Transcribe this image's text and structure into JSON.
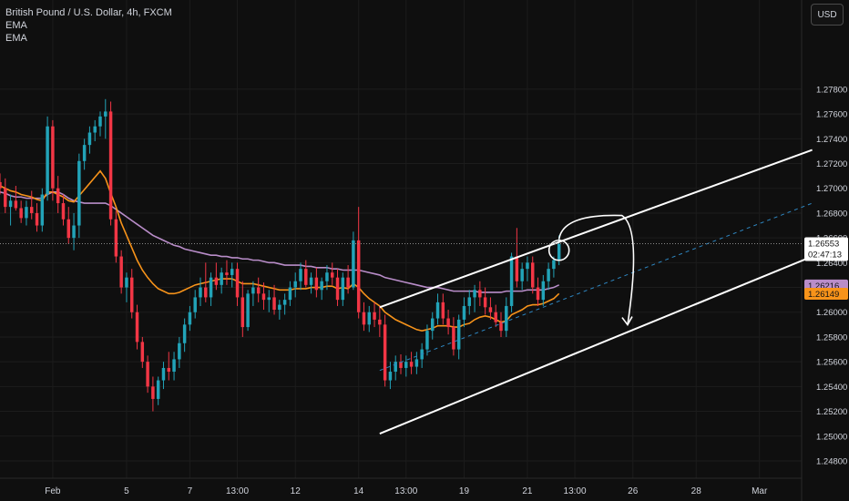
{
  "legend": {
    "symbol_line": "British Pound / U.S. Dollar, 4h, FXCM",
    "ema1": "EMA",
    "ema2": "EMA"
  },
  "currency_button": "USD",
  "chart_data": {
    "type": "candlestick",
    "ylim": [
      1.2466,
      1.2852
    ],
    "y_ticks": [
      "1.27800",
      "1.27600",
      "1.27400",
      "1.27200",
      "1.27000",
      "1.26800",
      "1.26600",
      "1.26400",
      "1.26200",
      "1.26000",
      "1.25800",
      "1.25600",
      "1.25400",
      "1.25200",
      "1.25000",
      "1.24800"
    ],
    "y_tick_values": [
      1.278,
      1.276,
      1.274,
      1.272,
      1.27,
      1.268,
      1.266,
      1.264,
      1.262,
      1.26,
      1.258,
      1.256,
      1.254,
      1.252,
      1.25,
      1.248
    ],
    "x_range": [
      0,
      152
    ],
    "x_ticks": [
      {
        "label": "Feb",
        "x": 10
      },
      {
        "label": "5",
        "x": 24
      },
      {
        "label": "7",
        "x": 36
      },
      {
        "label": "13:00",
        "x": 45
      },
      {
        "label": "12",
        "x": 56
      },
      {
        "label": "14",
        "x": 68
      },
      {
        "label": "13:00",
        "x": 77
      },
      {
        "label": "19",
        "x": 88
      },
      {
        "label": "21",
        "x": 100
      },
      {
        "label": "13:00",
        "x": 109
      },
      {
        "label": "26",
        "x": 120
      },
      {
        "label": "28",
        "x": 132
      },
      {
        "label": "Mar",
        "x": 144
      }
    ],
    "candles": [
      [
        1.2705,
        1.2712,
        1.2695,
        1.27
      ],
      [
        1.27,
        1.2708,
        1.268,
        1.2685
      ],
      [
        1.2685,
        1.2695,
        1.267,
        1.269
      ],
      [
        1.269,
        1.2702,
        1.2682,
        1.2684
      ],
      [
        1.2684,
        1.269,
        1.2672,
        1.2676
      ],
      [
        1.2676,
        1.269,
        1.267,
        1.2685
      ],
      [
        1.2685,
        1.2698,
        1.2675,
        1.268
      ],
      [
        1.268,
        1.2688,
        1.2665,
        1.267
      ],
      [
        1.267,
        1.27,
        1.2665,
        1.2695
      ],
      [
        1.2695,
        1.2758,
        1.269,
        1.275
      ],
      [
        1.275,
        1.2755,
        1.269,
        1.27
      ],
      [
        1.27,
        1.271,
        1.268,
        1.2688
      ],
      [
        1.2688,
        1.2695,
        1.267,
        1.2675
      ],
      [
        1.2675,
        1.2685,
        1.2655,
        1.266
      ],
      [
        1.266,
        1.268,
        1.265,
        1.267
      ],
      [
        1.267,
        1.2728,
        1.266,
        1.2722
      ],
      [
        1.2722,
        1.274,
        1.2715,
        1.2735
      ],
      [
        1.2735,
        1.275,
        1.2728,
        1.2745
      ],
      [
        1.2745,
        1.2755,
        1.2738,
        1.275
      ],
      [
        1.275,
        1.2762,
        1.2742,
        1.2758
      ],
      [
        1.2758,
        1.2772,
        1.274,
        1.2762
      ],
      [
        1.2762,
        1.277,
        1.267,
        1.2675
      ],
      [
        1.2675,
        1.2682,
        1.264,
        1.2645
      ],
      [
        1.2645,
        1.265,
        1.2615,
        1.262
      ],
      [
        1.262,
        1.2632,
        1.2608,
        1.2628
      ],
      [
        1.2628,
        1.2635,
        1.2595,
        1.26
      ],
      [
        1.26,
        1.2606,
        1.257,
        1.2576
      ],
      [
        1.2576,
        1.258,
        1.2555,
        1.256
      ],
      [
        1.256,
        1.2565,
        1.2535,
        1.254
      ],
      [
        1.254,
        1.2548,
        1.252,
        1.253
      ],
      [
        1.253,
        1.2548,
        1.2525,
        1.2545
      ],
      [
        1.2545,
        1.256,
        1.2538,
        1.2555
      ],
      [
        1.2555,
        1.2568,
        1.2545,
        1.2552
      ],
      [
        1.2552,
        1.2568,
        1.2545,
        1.2562
      ],
      [
        1.2562,
        1.258,
        1.2555,
        1.2575
      ],
      [
        1.2575,
        1.2595,
        1.2568,
        1.259
      ],
      [
        1.259,
        1.2605,
        1.2585,
        1.26
      ],
      [
        1.26,
        1.2618,
        1.2595,
        1.2612
      ],
      [
        1.2612,
        1.2628,
        1.2605,
        1.262
      ],
      [
        1.262,
        1.264,
        1.2608,
        1.2612
      ],
      [
        1.2612,
        1.2632,
        1.2605,
        1.2628
      ],
      [
        1.2628,
        1.264,
        1.2618,
        1.2622
      ],
      [
        1.2622,
        1.2636,
        1.2615,
        1.2632
      ],
      [
        1.2632,
        1.2642,
        1.2622,
        1.263
      ],
      [
        1.263,
        1.264,
        1.262,
        1.2635
      ],
      [
        1.2635,
        1.264,
        1.2605,
        1.2612
      ],
      [
        1.2612,
        1.2625,
        1.258,
        1.2588
      ],
      [
        1.2588,
        1.2618,
        1.2585,
        1.2615
      ],
      [
        1.2615,
        1.2625,
        1.2605,
        1.262
      ],
      [
        1.262,
        1.2628,
        1.2608,
        1.2615
      ],
      [
        1.2615,
        1.2624,
        1.2602,
        1.261
      ],
      [
        1.261,
        1.2618,
        1.26,
        1.2612
      ],
      [
        1.2612,
        1.2622,
        1.2598,
        1.2602
      ],
      [
        1.2602,
        1.261,
        1.2594,
        1.2606
      ],
      [
        1.2606,
        1.2615,
        1.2598,
        1.261
      ],
      [
        1.261,
        1.2625,
        1.2605,
        1.262
      ],
      [
        1.262,
        1.2632,
        1.2612,
        1.2625
      ],
      [
        1.2625,
        1.264,
        1.2618,
        1.2635
      ],
      [
        1.2635,
        1.2642,
        1.262,
        1.2622
      ],
      [
        1.2622,
        1.2632,
        1.2615,
        1.2628
      ],
      [
        1.2628,
        1.2636,
        1.2612,
        1.2618
      ],
      [
        1.2618,
        1.2628,
        1.261,
        1.2625
      ],
      [
        1.2625,
        1.2638,
        1.2618,
        1.2632
      ],
      [
        1.2632,
        1.264,
        1.2622,
        1.2628
      ],
      [
        1.2628,
        1.2635,
        1.2605,
        1.261
      ],
      [
        1.261,
        1.2632,
        1.2605,
        1.2628
      ],
      [
        1.2628,
        1.2638,
        1.2615,
        1.262
      ],
      [
        1.262,
        1.2665,
        1.2618,
        1.2658
      ],
      [
        1.2658,
        1.2685,
        1.2595,
        1.26
      ],
      [
        1.26,
        1.2608,
        1.2585,
        1.259
      ],
      [
        1.259,
        1.2605,
        1.2584,
        1.26
      ],
      [
        1.26,
        1.2608,
        1.2588,
        1.2594
      ],
      [
        1.2594,
        1.2605,
        1.258,
        1.259
      ],
      [
        1.259,
        1.2598,
        1.254,
        1.2545
      ],
      [
        1.2545,
        1.256,
        1.2538,
        1.2552
      ],
      [
        1.2552,
        1.2565,
        1.2545,
        1.256
      ],
      [
        1.256,
        1.2566,
        1.255,
        1.2555
      ],
      [
        1.2555,
        1.2565,
        1.2548,
        1.256
      ],
      [
        1.256,
        1.2568,
        1.255,
        1.2556
      ],
      [
        1.2556,
        1.2568,
        1.255,
        1.2562
      ],
      [
        1.2562,
        1.2575,
        1.2555,
        1.257
      ],
      [
        1.257,
        1.259,
        1.2565,
        1.2585
      ],
      [
        1.2585,
        1.26,
        1.2578,
        1.2595
      ],
      [
        1.2595,
        1.2615,
        1.259,
        1.2608
      ],
      [
        1.2608,
        1.2615,
        1.259,
        1.2595
      ],
      [
        1.2595,
        1.2602,
        1.2582,
        1.2588
      ],
      [
        1.2588,
        1.2596,
        1.2565,
        1.257
      ],
      [
        1.257,
        1.2598,
        1.2562,
        1.2594
      ],
      [
        1.2594,
        1.2612,
        1.2588,
        1.2605
      ],
      [
        1.2605,
        1.2618,
        1.2598,
        1.2612
      ],
      [
        1.2612,
        1.2622,
        1.26,
        1.2618
      ],
      [
        1.2618,
        1.2625,
        1.2605,
        1.2612
      ],
      [
        1.2612,
        1.262,
        1.2598,
        1.2604
      ],
      [
        1.2604,
        1.2612,
        1.2594,
        1.26
      ],
      [
        1.26,
        1.2606,
        1.2588,
        1.2592
      ],
      [
        1.2592,
        1.26,
        1.258,
        1.2585
      ],
      [
        1.2585,
        1.2612,
        1.258,
        1.2605
      ],
      [
        1.2605,
        1.2648,
        1.26,
        1.2645
      ],
      [
        1.2645,
        1.2668,
        1.262,
        1.2625
      ],
      [
        1.2625,
        1.264,
        1.2618,
        1.2635
      ],
      [
        1.2635,
        1.2645,
        1.2625,
        1.264
      ],
      [
        1.264,
        1.2645,
        1.2615,
        1.262
      ],
      [
        1.262,
        1.2628,
        1.2605,
        1.261
      ],
      [
        1.261,
        1.263,
        1.2605,
        1.2625
      ],
      [
        1.2625,
        1.264,
        1.2618,
        1.2635
      ],
      [
        1.2635,
        1.2645,
        1.2628,
        1.2642
      ],
      [
        1.2642,
        1.2662,
        1.2638,
        1.2655
      ]
    ],
    "series": [
      {
        "name": "EMA",
        "color": "#b98dc9",
        "values": [
          1.2697,
          1.2696,
          1.2694,
          1.2693,
          1.2693,
          1.2692,
          1.2692,
          1.2692,
          1.2692,
          1.2695,
          1.2697,
          1.2697,
          1.2695,
          1.2692,
          1.269,
          1.2689,
          1.2688,
          1.2688,
          1.2688,
          1.2688,
          1.2688,
          1.2686,
          1.2683,
          1.268,
          1.2677,
          1.2674,
          1.2671,
          1.2668,
          1.2665,
          1.2662,
          1.266,
          1.2658,
          1.2656,
          1.2654,
          1.2653,
          1.2651,
          1.265,
          1.2649,
          1.2648,
          1.2647,
          1.2646,
          1.2646,
          1.2645,
          1.2645,
          1.2644,
          1.2644,
          1.2643,
          1.2643,
          1.2642,
          1.2642,
          1.2641,
          1.264,
          1.264,
          1.2639,
          1.2638,
          1.2638,
          1.2638,
          1.2638,
          1.2637,
          1.2637,
          1.2636,
          1.2636,
          1.2636,
          1.2635,
          1.2635,
          1.2634,
          1.2634,
          1.2634,
          1.2634,
          1.2633,
          1.2632,
          1.2631,
          1.263,
          1.2628,
          1.2627,
          1.2626,
          1.2625,
          1.2624,
          1.2623,
          1.2622,
          1.2621,
          1.262,
          1.262,
          1.262,
          1.2619,
          1.2618,
          1.2617,
          1.2617,
          1.2617,
          1.2617,
          1.2617,
          1.2616,
          1.2616,
          1.2616,
          1.2616,
          1.2616,
          1.2617,
          1.2617,
          1.2617,
          1.2617,
          1.2618,
          1.2618,
          1.2618,
          1.2618,
          1.2619,
          1.262,
          1.2622
        ]
      },
      {
        "name": "EMA",
        "color": "#f7931a",
        "values": [
          1.2702,
          1.27,
          1.2698,
          1.2697,
          1.2695,
          1.2694,
          1.2693,
          1.2691,
          1.269,
          1.2697,
          1.2697,
          1.2695,
          1.2693,
          1.269,
          1.2689,
          1.2694,
          1.2699,
          1.2704,
          1.2709,
          1.2714,
          1.2708,
          1.2696,
          1.2685,
          1.2672,
          1.2662,
          1.2652,
          1.2642,
          1.2634,
          1.2628,
          1.2623,
          1.2619,
          1.2617,
          1.2615,
          1.2615,
          1.2616,
          1.2618,
          1.262,
          1.2622,
          1.2623,
          1.2624,
          1.2625,
          1.2626,
          1.2627,
          1.2627,
          1.2627,
          1.2625,
          1.2623,
          1.2623,
          1.2623,
          1.2622,
          1.2621,
          1.262,
          1.2619,
          1.2618,
          1.2618,
          1.2618,
          1.2619,
          1.2619,
          1.2619,
          1.262,
          1.262,
          1.262,
          1.2621,
          1.2621,
          1.2619,
          1.262,
          1.2619,
          1.2623,
          1.262,
          1.2615,
          1.2611,
          1.2608,
          1.2605,
          1.26,
          1.2597,
          1.2594,
          1.2592,
          1.259,
          1.2588,
          1.2586,
          1.2585,
          1.2586,
          1.2587,
          1.2589,
          1.2589,
          1.2589,
          1.2588,
          1.2588,
          1.259,
          1.2591,
          1.2594,
          1.2596,
          1.2597,
          1.2596,
          1.2594,
          1.2592,
          1.2593,
          1.2598,
          1.26,
          1.2602,
          1.2605,
          1.2606,
          1.2606,
          1.2607,
          1.2609,
          1.2611,
          1.2615
        ]
      }
    ],
    "price_labels": [
      {
        "price": 1.26553,
        "text": "1.26553",
        "sub": "02:47:13",
        "color": "#ffffff",
        "text_color": "#131313"
      },
      {
        "price": 1.26216,
        "text": "1.26216",
        "color": "#b98dc9",
        "text_color": "#131313"
      },
      {
        "price": 1.26149,
        "text": "1.26149",
        "color": "#f7931a",
        "text_color": "#131313"
      }
    ],
    "bull_color": "#22a3b8",
    "bear_color": "#f23645",
    "drawings": {
      "channel_upper": [
        [
          72,
          1.2604
        ],
        [
          154,
          1.2731
        ]
      ],
      "channel_lower": [
        [
          72,
          1.2502
        ],
        [
          154,
          1.2645
        ]
      ],
      "channel_mid": [
        [
          72,
          1.2553
        ],
        [
          154,
          1.2688
        ]
      ]
    }
  }
}
